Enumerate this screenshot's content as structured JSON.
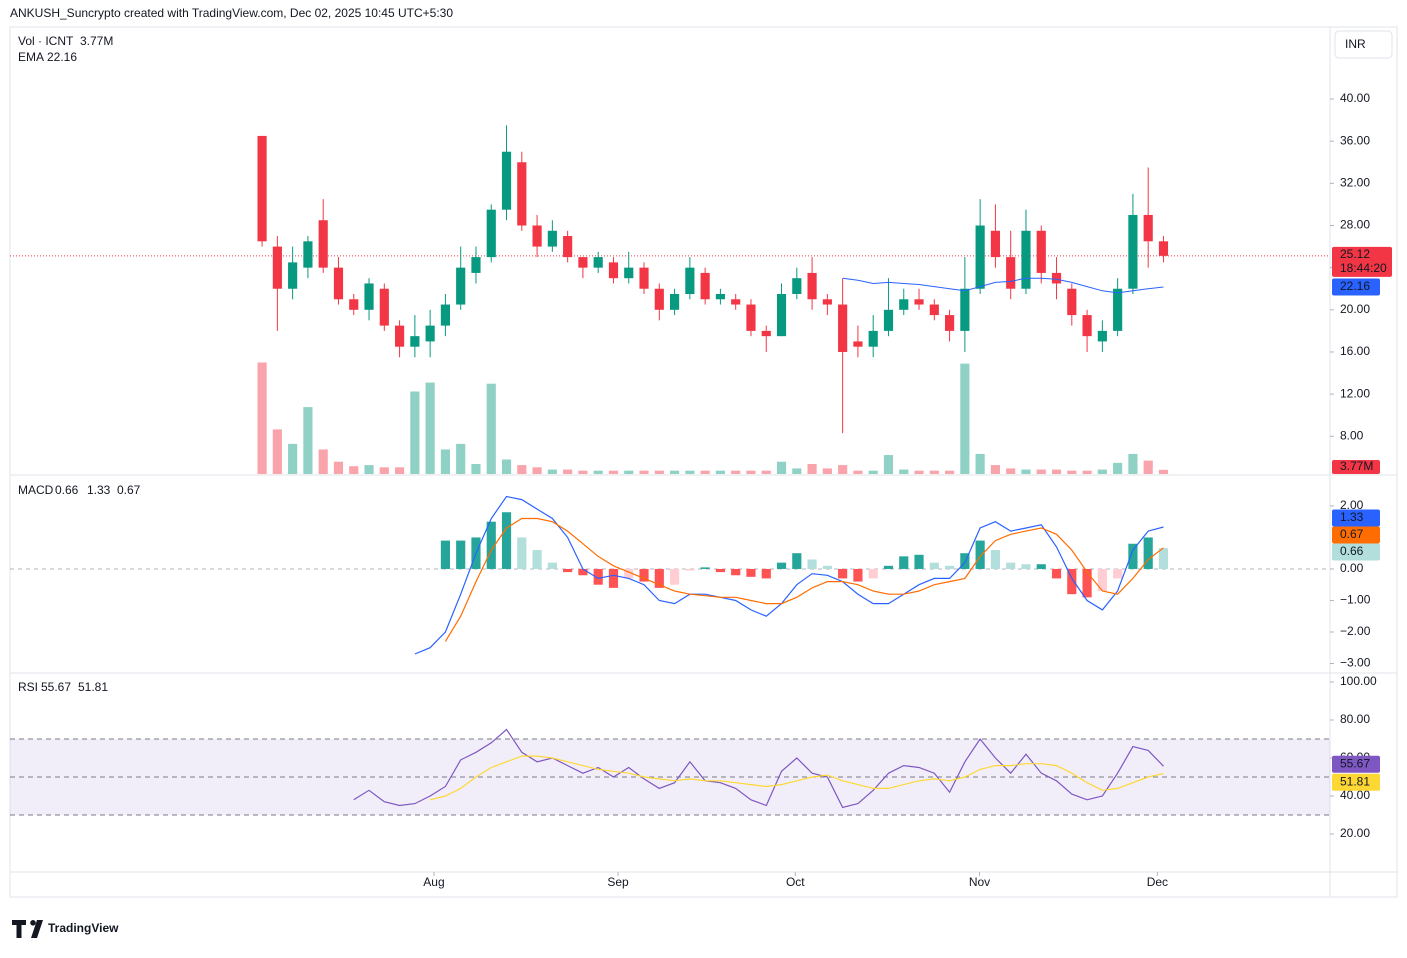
{
  "header": {
    "attribution": "ANKUSH_Suncrypto created with TradingView.com, Dec 02, 2025 10:45 UTC+5:30",
    "currency": "INR",
    "countdown": "18:44:20",
    "brand": "TradingView"
  },
  "chart_data": {
    "type": "candlestick",
    "volume_title": "Vol · ICNT",
    "ema_title": "EMA",
    "up_color": "#089981",
    "down_color": "#f23645",
    "xlim": [
      -16.5,
      69.9
    ],
    "xticks": [
      {
        "value": 11.25,
        "label": "Aug"
      },
      {
        "value": 23.3,
        "label": "Sep"
      },
      {
        "value": 34.9,
        "label": "Oct"
      },
      {
        "value": 46.96,
        "label": "Nov"
      },
      {
        "value": 58.6,
        "label": "Dec"
      }
    ],
    "ylim": [
      4.42,
      46.74
    ],
    "yticks": [
      {
        "value": 8,
        "label": "8.00"
      },
      {
        "value": 12,
        "label": "12.00"
      },
      {
        "value": 16,
        "label": "16.00"
      },
      {
        "value": 20,
        "label": "20.00"
      },
      {
        "value": 24,
        "label": "24.00"
      },
      {
        "value": 28,
        "label": "28.00"
      },
      {
        "value": 32,
        "label": "32.00"
      },
      {
        "value": 36,
        "label": "36.00"
      },
      {
        "value": 40,
        "label": "40.00"
      }
    ],
    "open": [
      36.5,
      26,
      22,
      24,
      28.5,
      24,
      21,
      20,
      22,
      18.5,
      16.5,
      17,
      18.5,
      20.5,
      23.5,
      25,
      29.5,
      34,
      28,
      26,
      27,
      25,
      24,
      24.5,
      23,
      24,
      22,
      20,
      21.5,
      23.5,
      21,
      21,
      20.5,
      18,
      17.5,
      21.5,
      23.5,
      21,
      20.5,
      17,
      16.5,
      18,
      20,
      21,
      20.5,
      19.5,
      18,
      22,
      27.5,
      25,
      22,
      27.5,
      23.5,
      22,
      19.5,
      17,
      18,
      22,
      29,
      26.5
    ],
    "high": [
      36.5,
      27,
      26,
      27,
      30.5,
      25,
      21.5,
      23,
      22.5,
      19,
      19.5,
      20,
      21.5,
      26,
      26,
      30,
      37.5,
      35,
      29,
      28.5,
      27.5,
      25,
      25.5,
      25,
      25.5,
      24.5,
      22.5,
      22,
      25,
      24,
      22,
      21.5,
      21,
      18.5,
      22.5,
      24,
      25,
      21.5,
      23,
      18.5,
      19.5,
      23,
      22,
      22,
      21,
      20,
      25,
      30.5,
      30,
      27.5,
      29.5,
      28,
      25,
      22.5,
      20,
      19,
      23,
      31,
      33.5,
      27
    ],
    "low": [
      26,
      18,
      21,
      23,
      23.5,
      20.5,
      19.5,
      19,
      18,
      15.5,
      15.5,
      15.5,
      17.5,
      20,
      22.5,
      24.5,
      28.5,
      27.5,
      25,
      25.5,
      24.5,
      23,
      23.5,
      22.5,
      22.5,
      21.5,
      19,
      19.5,
      21,
      20.5,
      20.5,
      20,
      17.5,
      16,
      17.5,
      21,
      20,
      19.5,
      8.3,
      15.5,
      15.5,
      17.5,
      19.5,
      20,
      19,
      17,
      16,
      21.5,
      24,
      21,
      21.5,
      22.5,
      21,
      18.5,
      16,
      16,
      17.5,
      21.5,
      24,
      24.5
    ],
    "close": [
      26.5,
      22,
      24.5,
      26.5,
      24,
      21,
      20,
      22.5,
      18.5,
      16.5,
      17.5,
      18.5,
      20.5,
      24,
      25,
      29.5,
      35,
      28,
      26,
      27.5,
      25,
      24,
      25,
      23,
      24,
      22,
      20,
      21.5,
      24,
      21,
      21.5,
      20.5,
      18,
      17.5,
      21.5,
      23,
      21,
      20.5,
      16,
      16.5,
      18,
      20,
      21,
      20.5,
      19.5,
      18,
      22,
      28,
      25,
      22,
      27.5,
      23.5,
      22.5,
      19.5,
      17.5,
      18,
      22,
      29,
      26.5,
      25.12
    ],
    "volume": {
      "values": [
        100,
        40,
        27,
        60,
        22,
        11,
        7,
        8,
        6,
        6,
        74,
        82,
        22,
        27,
        9,
        81,
        13,
        8,
        6,
        4,
        4,
        3,
        3,
        3,
        3,
        3,
        3,
        3,
        3,
        3,
        3,
        3,
        3,
        3,
        11,
        5,
        9,
        5,
        8,
        3,
        3,
        17,
        4,
        3,
        3,
        3,
        99,
        18,
        8,
        5,
        4,
        4,
        4,
        3,
        3,
        4,
        10,
        18,
        12,
        3.77
      ],
      "last_label": "3.77M",
      "ylim": [
        0,
        400
      ]
    },
    "ema": {
      "color": "#2962ff",
      "values": [
        null,
        null,
        null,
        null,
        null,
        null,
        null,
        null,
        null,
        null,
        null,
        null,
        null,
        null,
        null,
        null,
        null,
        null,
        null,
        null,
        null,
        null,
        null,
        null,
        null,
        null,
        null,
        null,
        null,
        null,
        null,
        null,
        null,
        null,
        null,
        null,
        null,
        null,
        23,
        22.8,
        22.5,
        22.6,
        22.5,
        22.4,
        22.2,
        22,
        21.8,
        22.2,
        22.6,
        22.7,
        23,
        23,
        22.9,
        22.6,
        22.2,
        21.8,
        21.6,
        21.8,
        22,
        22.16
      ]
    },
    "macd": {
      "title": "MACD",
      "ylim": [
        -3.27,
        2.95
      ],
      "yticks": [
        {
          "value": -3,
          "label": "−3.00"
        },
        {
          "value": -2,
          "label": "−2.00"
        },
        {
          "value": -1,
          "label": "−1.00"
        },
        {
          "value": 0,
          "label": "0.00"
        },
        {
          "value": 2,
          "label": "2.00"
        }
      ],
      "histogram": {
        "colors": [
          "#26a69a",
          "#b2dfdb",
          "#ff5252",
          "#ffcdd2"
        ],
        "values": [
          null,
          null,
          null,
          null,
          null,
          null,
          null,
          null,
          null,
          null,
          null,
          null,
          0.9,
          0.9,
          1.0,
          1.5,
          1.8,
          1.0,
          0.6,
          0.2,
          -0.1,
          -0.2,
          -0.5,
          -0.6,
          -0.3,
          -0.4,
          -0.6,
          -0.5,
          -0.05,
          0.05,
          -0.1,
          -0.2,
          -0.25,
          -0.3,
          0.2,
          0.5,
          0.3,
          0.1,
          -0.3,
          -0.4,
          -0.3,
          0.1,
          0.4,
          0.45,
          0.2,
          0.1,
          0.5,
          0.9,
          0.6,
          0.2,
          0.15,
          0.15,
          -0.3,
          -0.8,
          -0.9,
          -0.7,
          -0.3,
          0.8,
          1.0,
          0.66
        ]
      },
      "line": {
        "color": "#2962ff",
        "values": [
          null,
          null,
          null,
          null,
          null,
          null,
          null,
          null,
          null,
          null,
          -2.7,
          -2.5,
          -2.0,
          -0.8,
          0.5,
          1.6,
          2.3,
          2.2,
          1.9,
          1.6,
          1.0,
          0.0,
          -0.3,
          -0.2,
          -0.3,
          -0.5,
          -1.0,
          -1.1,
          -0.8,
          -0.8,
          -0.9,
          -1.0,
          -1.3,
          -1.5,
          -1.1,
          -0.5,
          -0.15,
          -0.2,
          -0.4,
          -0.8,
          -1.1,
          -1.1,
          -0.8,
          -0.5,
          -0.3,
          -0.3,
          0.2,
          1.3,
          1.5,
          1.2,
          1.3,
          1.4,
          0.7,
          -0.3,
          -1.0,
          -1.3,
          -0.7,
          0.6,
          1.2,
          1.33
        ]
      },
      "signal": {
        "color": "#ff6d00",
        "values": [
          null,
          null,
          null,
          null,
          null,
          null,
          null,
          null,
          null,
          null,
          null,
          null,
          -2.3,
          -1.5,
          -0.4,
          0.6,
          1.3,
          1.6,
          1.6,
          1.5,
          1.2,
          0.8,
          0.4,
          0.1,
          -0.1,
          -0.3,
          -0.5,
          -0.7,
          -0.8,
          -0.85,
          -0.9,
          -0.9,
          -1.0,
          -1.1,
          -1.1,
          -0.9,
          -0.6,
          -0.4,
          -0.4,
          -0.5,
          -0.7,
          -0.8,
          -0.8,
          -0.7,
          -0.5,
          -0.4,
          -0.3,
          0.4,
          0.9,
          1.1,
          1.2,
          1.3,
          1.1,
          0.6,
          -0.1,
          -0.7,
          -0.8,
          -0.3,
          0.3,
          0.67
        ]
      }
    },
    "rsi": {
      "title": "RSI",
      "ylim": [
        0,
        104.2
      ],
      "yticks": [
        {
          "value": 20,
          "label": "20.00"
        },
        {
          "value": 40,
          "label": "40.00"
        },
        {
          "value": 60,
          "label": "60.00"
        },
        {
          "value": 80,
          "label": "80.00"
        },
        {
          "value": 100,
          "label": "100.00"
        }
      ],
      "band": [
        30,
        70
      ],
      "middle": 50,
      "band_color": "#7e57c2",
      "line": {
        "color": "#7e57c2",
        "values": [
          null,
          null,
          null,
          null,
          null,
          null,
          38,
          43,
          37,
          35,
          36,
          40,
          45,
          59,
          63,
          68,
          75,
          63,
          58,
          60,
          56,
          52,
          55,
          50,
          55,
          49,
          44,
          47,
          58,
          48,
          47,
          44,
          38,
          35,
          53,
          60,
          52,
          50,
          34,
          36,
          43,
          52,
          56,
          55,
          52,
          42,
          58,
          70,
          60,
          52,
          62,
          52,
          48,
          41,
          38,
          40,
          52,
          66,
          64,
          55.67
        ]
      },
      "ma": {
        "color": "#fdd835",
        "values": [
          null,
          null,
          null,
          null,
          null,
          null,
          null,
          null,
          null,
          null,
          null,
          38,
          40,
          44,
          50,
          55,
          58,
          61,
          61,
          60,
          58,
          56,
          54,
          53,
          52,
          50,
          49,
          48,
          49,
          48,
          48,
          47,
          46,
          45,
          46,
          48,
          50,
          51,
          48,
          46,
          44,
          44,
          46,
          48,
          49,
          48,
          50,
          54,
          56,
          56,
          57,
          57,
          56,
          52,
          47,
          43,
          44,
          47,
          50,
          51.81
        ]
      }
    }
  }
}
